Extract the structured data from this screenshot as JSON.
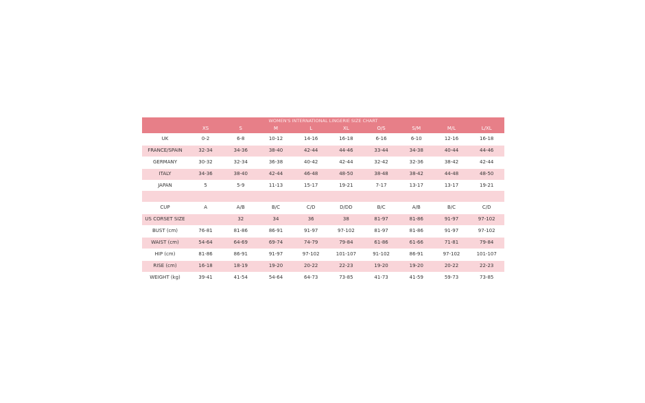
{
  "table": {
    "title": "WOMEN'S INTERNATIONAL LINGERIE SIZE CHART",
    "header": [
      "XS",
      "S",
      "M",
      "L",
      "XL",
      "O/S",
      "S/M",
      "M/L",
      "L/XL"
    ],
    "groups": [
      {
        "rows": [
          {
            "label": "UK",
            "cells": [
              "0-2",
              "6-8",
              "10-12",
              "14-16",
              "16-18",
              "6-16",
              "6-10",
              "12-16",
              "16-18"
            ]
          },
          {
            "label": "FRANCE/SPAIN",
            "cells": [
              "32-34",
              "34-36",
              "38-40",
              "42-44",
              "44-46",
              "33-44",
              "34-38",
              "40-44",
              "44-46"
            ]
          },
          {
            "label": "GERMANY",
            "cells": [
              "30-32",
              "32-34",
              "36-38",
              "40-42",
              "42-44",
              "32-42",
              "32-36",
              "38-42",
              "42-44"
            ]
          },
          {
            "label": "ITALY",
            "cells": [
              "34-36",
              "38-40",
              "42-44",
              "46-48",
              "48-50",
              "38-48",
              "38-42",
              "44-48",
              "48-50"
            ]
          },
          {
            "label": "JAPAN",
            "cells": [
              "5",
              "5-9",
              "11-13",
              "15-17",
              "19-21",
              "7-17",
              "13-17",
              "13-17",
              "19-21"
            ]
          }
        ]
      },
      {
        "rows": [
          {
            "label": "CUP",
            "cells": [
              "A",
              "A/B",
              "B/C",
              "C/D",
              "D/DD",
              "B/C",
              "A/B",
              "B/C",
              "C/D"
            ]
          },
          {
            "label": "US CORSET SIZE",
            "cells": [
              null,
              "32",
              "34",
              "36",
              "38",
              "81-97",
              "81-86",
              "91-97",
              "97-102"
            ]
          },
          {
            "label": "BUST (cm)",
            "cells": [
              "76-81",
              "81-86",
              "86-91",
              "91-97",
              "97-102",
              "81-97",
              "81-86",
              "91-97",
              "97-102"
            ]
          },
          {
            "label": "WAIST (cm)",
            "cells": [
              "54-64",
              "64-69",
              "69-74",
              "74-79",
              "79-84",
              "61-86",
              "61-66",
              "71-81",
              "79-84"
            ]
          },
          {
            "label": "HIP (cm)",
            "cells": [
              "81-86",
              "86-91",
              "91-97",
              "97-102",
              "101-107",
              "91-102",
              "86-91",
              "97-102",
              "101-107"
            ]
          },
          {
            "label": "RISE (cm)",
            "cells": [
              "16-18",
              "18-19",
              "19-20",
              "20-22",
              "22-23",
              "19-20",
              "19-20",
              "20-22",
              "22-23"
            ]
          },
          {
            "label": "WEIGHT (kg)",
            "cells": [
              "39-41",
              "41-54",
              "54-64",
              "64-73",
              "73-85",
              "41-73",
              "41-59",
              "59-73",
              "73-85"
            ]
          }
        ]
      }
    ]
  }
}
